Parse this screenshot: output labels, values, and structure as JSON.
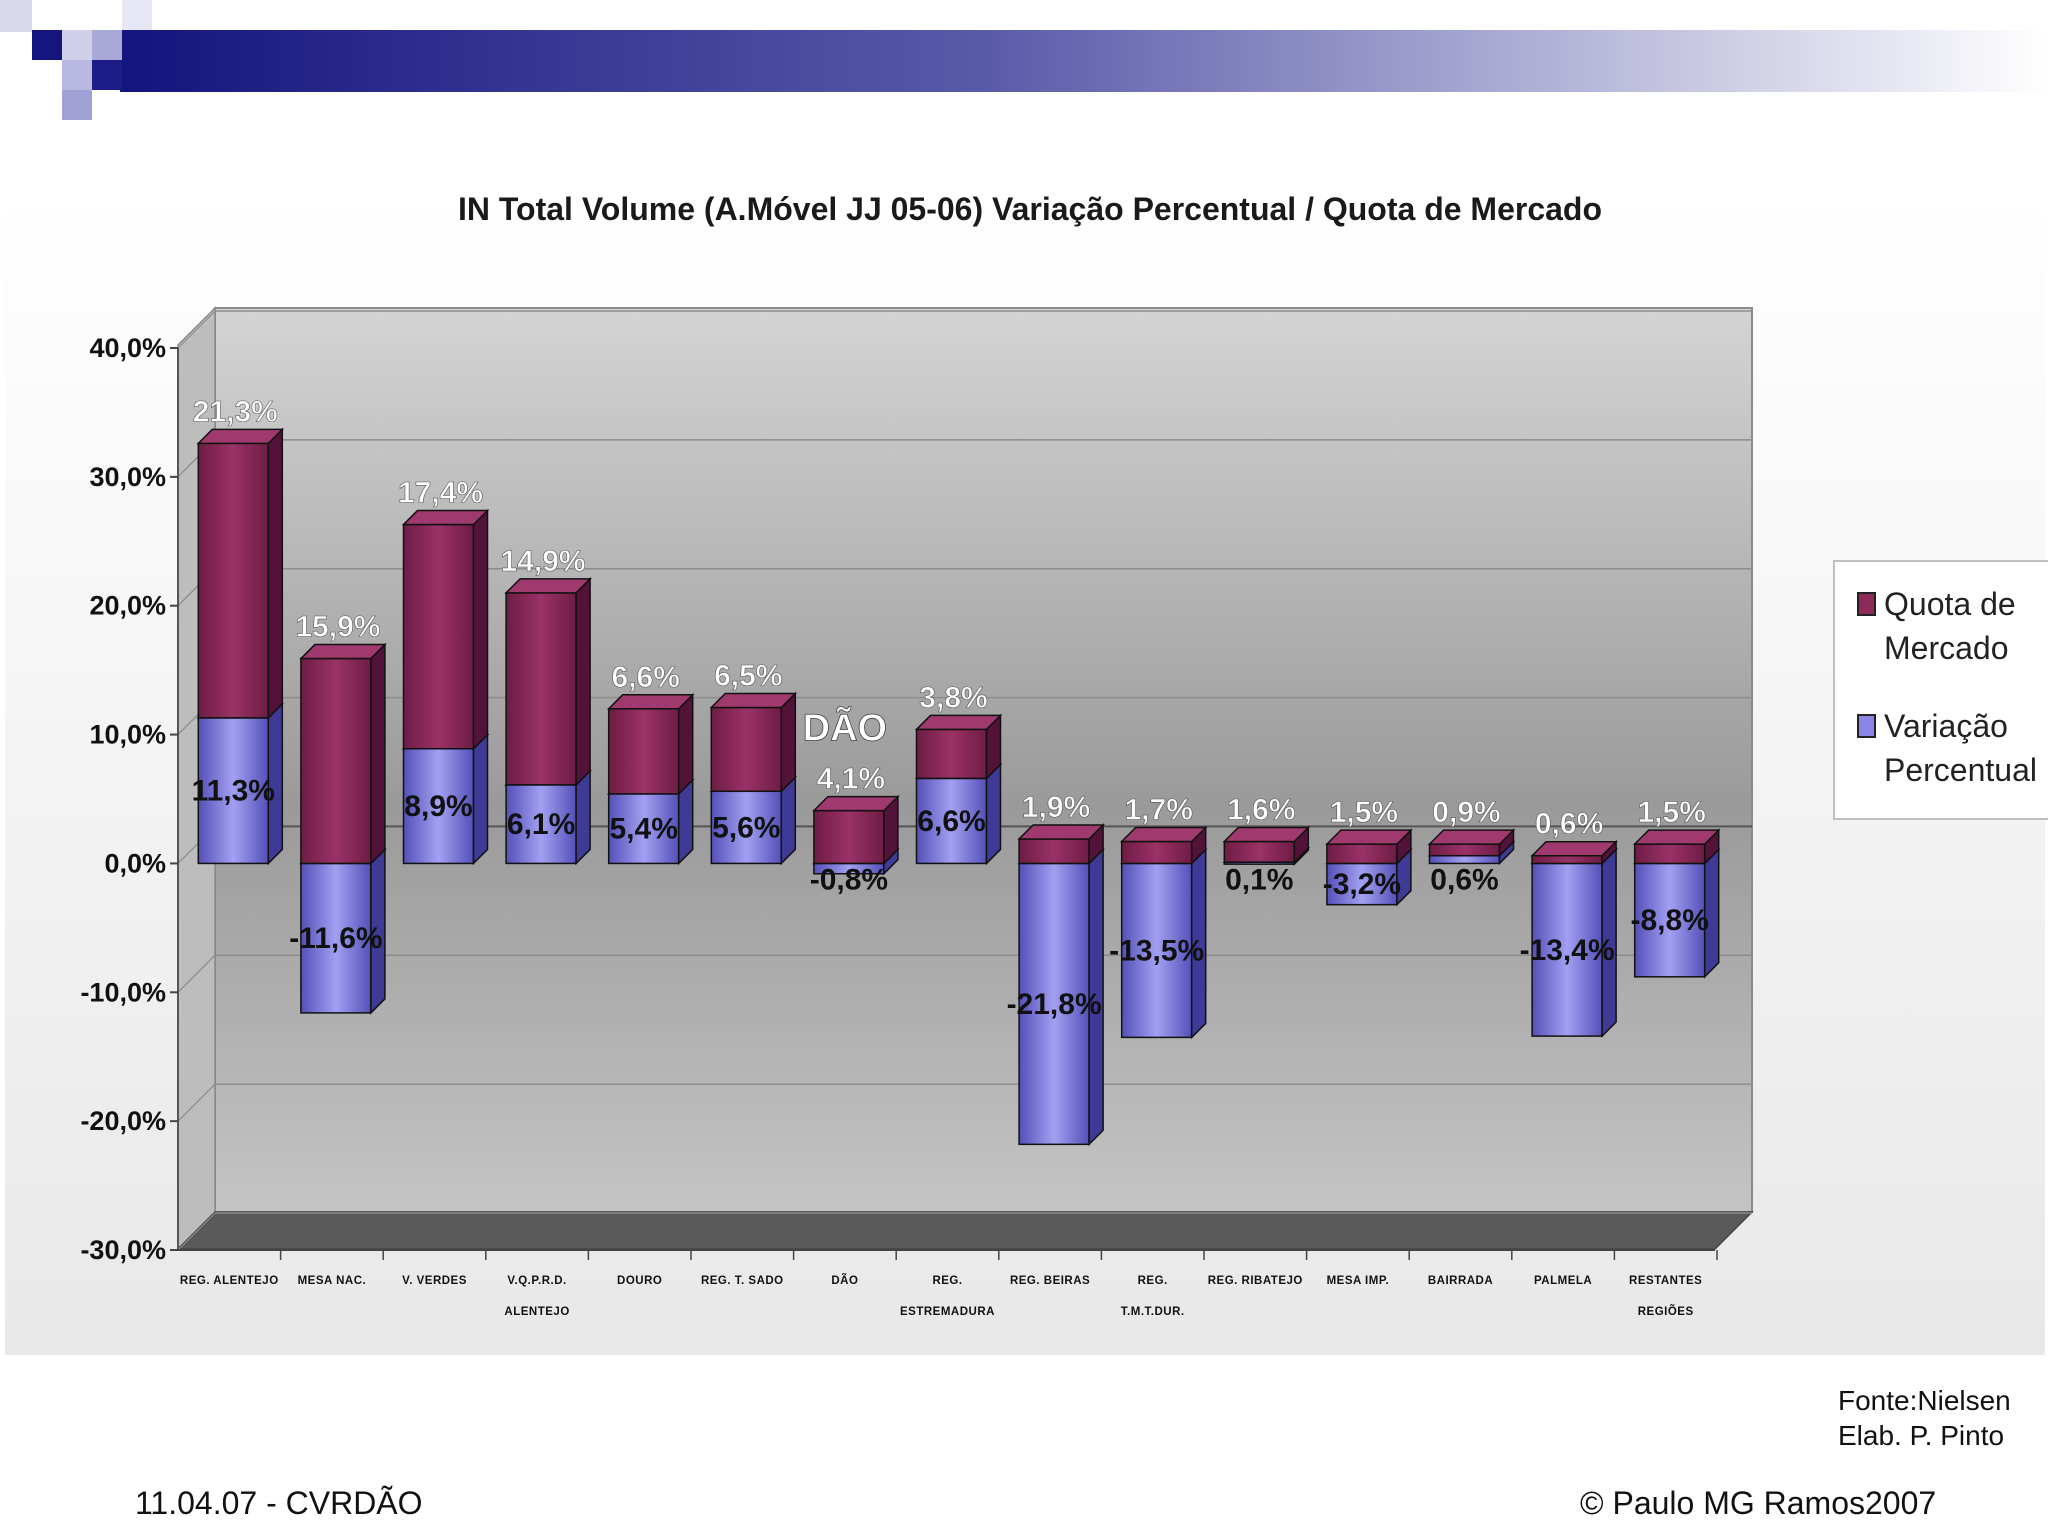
{
  "colors": {
    "quota": "#8e2a59",
    "variacao": "#8a86e6",
    "banner_dark": "#14157d",
    "plot_bg": "#b5b5b5"
  },
  "chart_data": {
    "type": "bar",
    "stacked": true,
    "title": "IN Total Volume (A.Móvel JJ 05-06) Variação Percentual / Quota de Mercado",
    "categories": [
      [
        "Reg. Alentejo"
      ],
      [
        "Mesa Nac."
      ],
      [
        "V. Verdes"
      ],
      [
        "V.Q.P.R.D.",
        "Alentejo"
      ],
      [
        "Douro"
      ],
      [
        "Reg. T. Sado"
      ],
      [
        "Dão"
      ],
      [
        "Reg.",
        "Estremadura"
      ],
      [
        "Reg. Beiras"
      ],
      [
        "Reg.",
        "T.M.T.Dur."
      ],
      [
        "Reg. Ribatejo"
      ],
      [
        "Mesa Imp."
      ],
      [
        "Bairrada"
      ],
      [
        "Palmela"
      ],
      [
        "Restantes",
        "Regiões"
      ]
    ],
    "series": [
      {
        "name": "Variação Percentual",
        "values": [
          11.3,
          -11.6,
          8.9,
          6.1,
          5.4,
          5.6,
          -0.8,
          6.6,
          -21.8,
          -13.5,
          0.1,
          -3.2,
          0.6,
          -13.4,
          -8.8
        ],
        "labels": [
          "11,3%",
          "-11,6%",
          "8,9%",
          "6,1%",
          "5,4%",
          "5,6%",
          "-0,8%",
          "6,6%",
          "-21,8%",
          "-13,5%",
          "0,1%",
          "-3,2%",
          "0,6%",
          "-13,4%",
          "-8,8%"
        ]
      },
      {
        "name": "Quota de Mercado",
        "values": [
          21.3,
          15.9,
          17.4,
          14.9,
          6.6,
          6.5,
          4.1,
          3.8,
          1.9,
          1.7,
          1.6,
          1.5,
          0.9,
          0.6,
          1.5
        ],
        "labels": [
          "21,3%",
          "15,9%",
          "17,4%",
          "14,9%",
          "6,6%",
          "6,5%",
          "4,1%",
          "3,8%",
          "1,9%",
          "1,7%",
          "1,6%",
          "1,5%",
          "0,9%",
          "0,6%",
          "1,5%"
        ]
      }
    ],
    "y_ticks": [
      "40,0%",
      "30,0%",
      "20,0%",
      "10,0%",
      "0,0%",
      "-10,0%",
      "-20,0%",
      "-30,0%"
    ],
    "ylim": [
      -30,
      40
    ],
    "annotation": {
      "text": "DÃO",
      "category_index": 6
    },
    "legend": {
      "placement": "right",
      "entries": [
        "Quota de Mercado",
        "Variação Percentual"
      ]
    }
  },
  "footer": {
    "source_line1": "Fonte:Nielsen",
    "source_line2": "Elab. P. Pinto",
    "left": "11.04.07 - CVRDÃO",
    "right": "© Paulo MG Ramos2007"
  }
}
